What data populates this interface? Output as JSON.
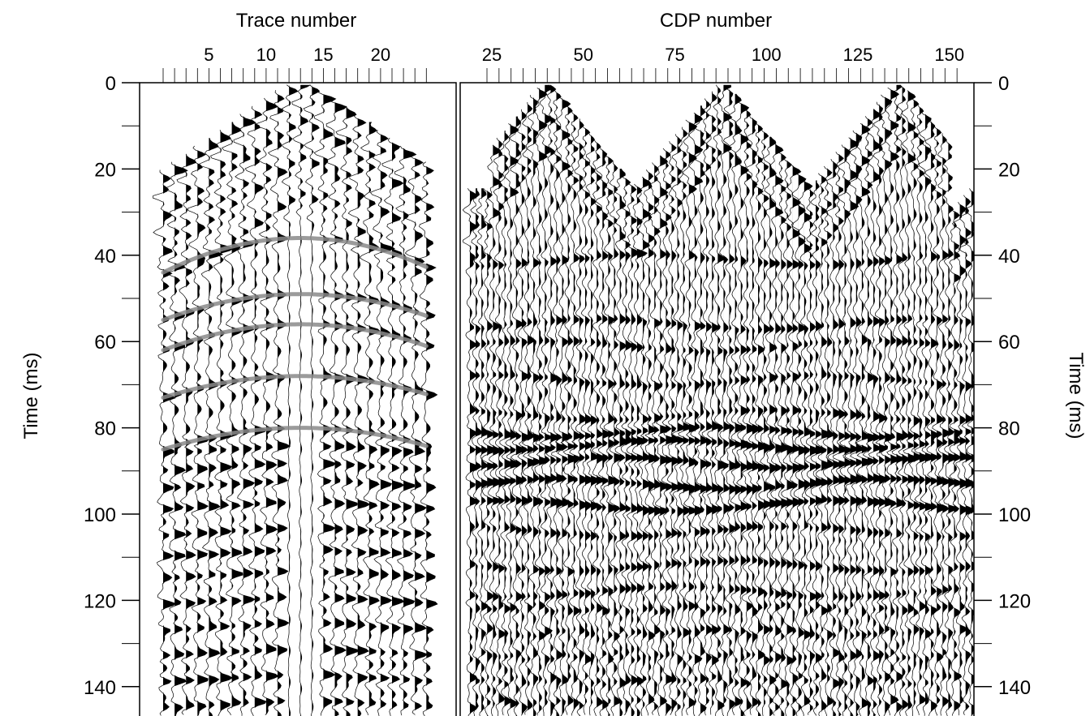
{
  "chart_data": [
    {
      "type": "seismic-wiggle",
      "panel": "shot-gather",
      "xlabel": "Trace number",
      "ylabel": "Time (ms)",
      "x_ticks": [
        5,
        10,
        15,
        20
      ],
      "x_range": [
        0,
        24
      ],
      "trace_count": 24,
      "y_ticks": [
        0,
        20,
        40,
        60,
        80,
        100,
        120,
        140
      ],
      "y_minor_ticks": [
        10,
        30,
        50,
        70,
        90,
        110,
        130
      ],
      "ylim": [
        0,
        147
      ],
      "reverse_y": true,
      "fill_color": "#000000",
      "moveout_color": "#8a8a8a",
      "hyperbolas": [
        {
          "apex_trace": 13,
          "t0": 36,
          "t_edge": 44
        },
        {
          "apex_trace": 13,
          "t0": 49,
          "t_edge": 55
        },
        {
          "apex_trace": 13,
          "t0": 56,
          "t_edge": 62
        },
        {
          "apex_trace": 13,
          "t0": 68,
          "t_edge": 73
        },
        {
          "apex_trace": 13,
          "t0": 80,
          "t_edge": 85
        }
      ]
    },
    {
      "type": "seismic-wiggle",
      "panel": "cdp-stack",
      "xlabel": "CDP number",
      "ylabel": "Time (ms)",
      "x_ticks": [
        25,
        50,
        75,
        100,
        125,
        150
      ],
      "x_range": [
        19,
        156
      ],
      "trace_count": 88,
      "y_ticks": [
        0,
        20,
        40,
        60,
        80,
        100,
        120,
        140
      ],
      "y_minor_ticks": [
        10,
        30,
        50,
        70,
        90,
        110,
        130
      ],
      "ylim": [
        0,
        147
      ],
      "reverse_y": true,
      "fill_color": "#000000",
      "reflectors_ms": [
        41,
        56,
        61,
        69,
        77,
        81,
        84,
        88,
        93,
        98,
        104,
        112,
        118
      ]
    }
  ]
}
